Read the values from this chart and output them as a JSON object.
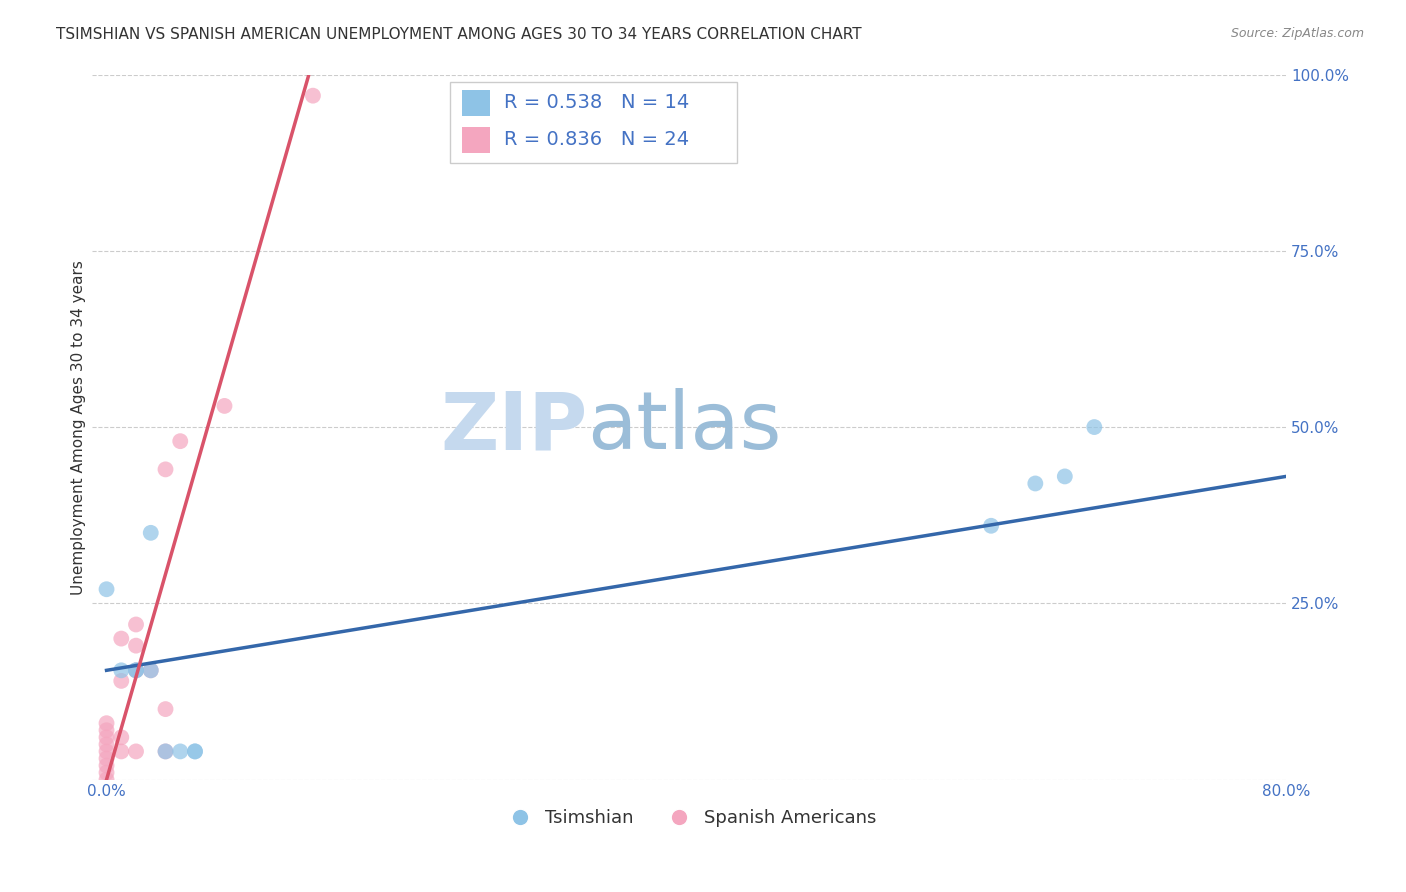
{
  "title": "TSIMSHIAN VS SPANISH AMERICAN UNEMPLOYMENT AMONG AGES 30 TO 34 YEARS CORRELATION CHART",
  "source": "Source: ZipAtlas.com",
  "ylabel": "Unemployment Among Ages 30 to 34 years",
  "watermark_zip": "ZIP",
  "watermark_atlas": "atlas",
  "xlim": [
    -0.01,
    0.8
  ],
  "ylim": [
    0.0,
    1.0
  ],
  "xticks": [
    0.0,
    0.2,
    0.4,
    0.6,
    0.8
  ],
  "xticklabels": [
    "0.0%",
    "",
    "",
    "",
    "80.0%"
  ],
  "yticks": [
    0.0,
    0.25,
    0.5,
    0.75,
    1.0
  ],
  "yticklabels": [
    "",
    "25.0%",
    "50.0%",
    "75.0%",
    "100.0%"
  ],
  "tsimshian_color": "#8ec3e6",
  "spanish_color": "#f4a6bf",
  "tsimshian_line_color": "#3467aa",
  "spanish_line_color": "#d9536a",
  "tsimshian_R": 0.538,
  "tsimshian_N": 14,
  "spanish_R": 0.836,
  "spanish_N": 24,
  "tsimshian_x": [
    0.0,
    0.01,
    0.02,
    0.02,
    0.03,
    0.03,
    0.04,
    0.05,
    0.06,
    0.06,
    0.6,
    0.63,
    0.65,
    0.67
  ],
  "tsimshian_y": [
    0.27,
    0.155,
    0.155,
    0.155,
    0.155,
    0.35,
    0.04,
    0.04,
    0.04,
    0.04,
    0.36,
    0.42,
    0.43,
    0.5
  ],
  "spanish_x": [
    0.0,
    0.0,
    0.0,
    0.0,
    0.0,
    0.0,
    0.0,
    0.0,
    0.0,
    0.01,
    0.01,
    0.01,
    0.01,
    0.02,
    0.02,
    0.02,
    0.02,
    0.03,
    0.04,
    0.04,
    0.04,
    0.05,
    0.08,
    0.14
  ],
  "spanish_y": [
    0.0,
    0.01,
    0.02,
    0.03,
    0.04,
    0.05,
    0.06,
    0.07,
    0.08,
    0.04,
    0.06,
    0.14,
    0.2,
    0.04,
    0.155,
    0.19,
    0.22,
    0.155,
    0.04,
    0.1,
    0.44,
    0.48,
    0.53,
    0.97
  ],
  "background_color": "#ffffff",
  "grid_color": "#cccccc",
  "title_fontsize": 11,
  "axis_label_fontsize": 11,
  "tick_fontsize": 11,
  "legend_fontsize": 13,
  "marker_size": 130
}
